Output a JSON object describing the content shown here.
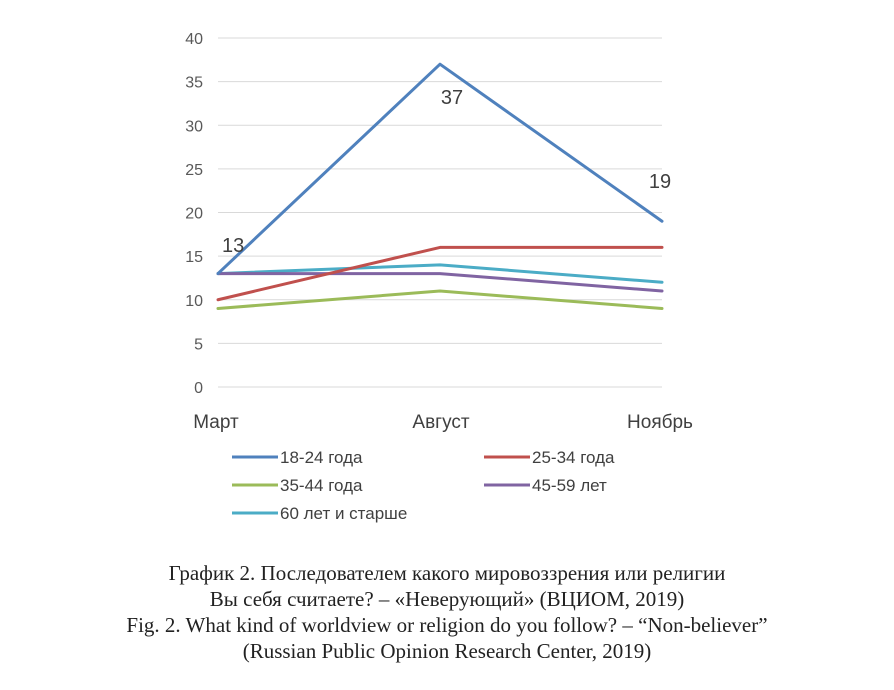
{
  "chart_data": {
    "type": "line",
    "categories": [
      "Март",
      "Август",
      "Ноябрь"
    ],
    "ylim": [
      0,
      40
    ],
    "yticks": [
      0,
      5,
      10,
      15,
      20,
      25,
      30,
      35,
      40
    ],
    "grid": true,
    "legend_position": "bottom",
    "series": [
      {
        "name": "18-24 года",
        "values": [
          13,
          37,
          19
        ],
        "color": "#4F81BD",
        "data_labels": [
          "13",
          "37",
          "19"
        ]
      },
      {
        "name": "25-34 года",
        "values": [
          10,
          16,
          16
        ],
        "color": "#C0504D"
      },
      {
        "name": "35-44 года",
        "values": [
          9,
          11,
          9
        ],
        "color": "#9BBB59"
      },
      {
        "name": "45-59 лет",
        "values": [
          13,
          13,
          11
        ],
        "color": "#8064A2"
      },
      {
        "name": "60 лет и старше",
        "values": [
          13,
          14,
          12
        ],
        "color": "#4BACC6"
      }
    ]
  },
  "caption": {
    "line1": "График 2. Последователем какого мировоззрения или религии",
    "line2": "Вы себя считаете? – «Неверующий» (ВЦИОМ, 2019)",
    "line3": "Fig. 2. What kind of worldview or religion do you follow? – “Non-believer”",
    "line4": "(Russian Public Opinion Research Center, 2019)"
  }
}
